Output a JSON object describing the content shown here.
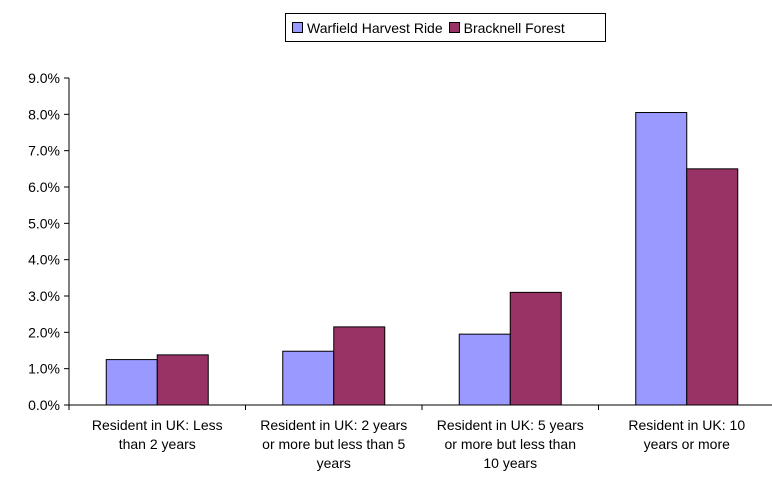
{
  "chart_data": {
    "type": "bar",
    "categories": [
      [
        "Resident in UK: Less",
        "than 2 years"
      ],
      [
        "Resident in UK: 2 years",
        "or more but less than 5",
        "years"
      ],
      [
        "Resident in UK: 5 years",
        "or more but less than",
        "10 years"
      ],
      [
        "Resident in UK: 10",
        "years or more"
      ]
    ],
    "series": [
      {
        "name": "Warfield Harvest Ride",
        "color": "#9999ff",
        "values": [
          1.25,
          1.48,
          1.95,
          8.05
        ]
      },
      {
        "name": "Bracknell Forest",
        "color": "#993366",
        "values": [
          1.38,
          2.15,
          3.1,
          6.5
        ]
      }
    ],
    "ylim": [
      0,
      9
    ],
    "yticks": [
      "0.0%",
      "1.0%",
      "2.0%",
      "3.0%",
      "4.0%",
      "5.0%",
      "6.0%",
      "7.0%",
      "8.0%",
      "9.0%"
    ],
    "title": "",
    "xlabel": "",
    "ylabel": "",
    "grid": false,
    "legend_position": "top"
  }
}
